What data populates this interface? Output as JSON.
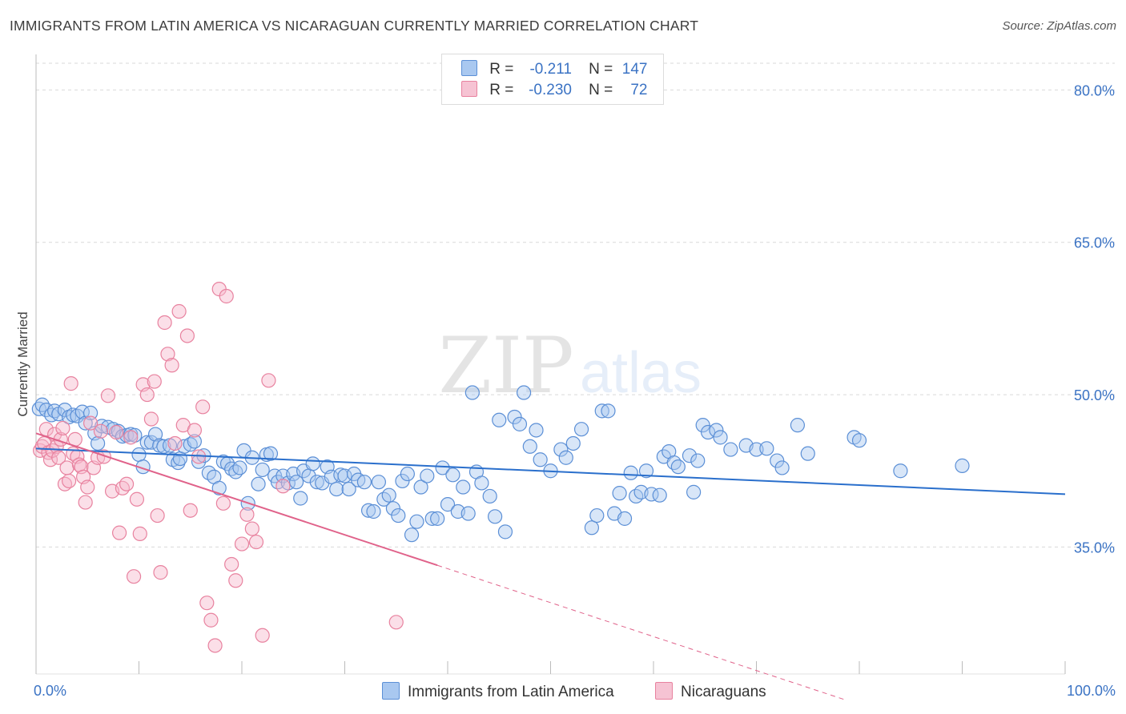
{
  "header": {
    "title": "IMMIGRANTS FROM LATIN AMERICA VS NICARAGUAN CURRENTLY MARRIED CORRELATION CHART",
    "source": "Source: ZipAtlas.com"
  },
  "watermark": {
    "zip": "ZIP",
    "atlas": "atlas"
  },
  "legend": {
    "rows": [
      {
        "r_label": "R =",
        "r_value": "-0.211",
        "n_label": "N =",
        "n_value": "147"
      },
      {
        "r_label": "R =",
        "r_value": "-0.230",
        "n_label": "N =",
        "n_value": "72"
      }
    ]
  },
  "colors": {
    "blue_fill": "#a9c8f0",
    "blue_stroke": "#5b8fd6",
    "blue_line": "#2a6fcc",
    "pink_fill": "#f6b9cc",
    "pink_stroke": "#e8829f",
    "pink_line": "#e0628a",
    "tick_text": "#3b73c4",
    "grid": "#d9d9d9"
  },
  "chart_data": {
    "type": "scatter",
    "title": "IMMIGRANTS FROM LATIN AMERICA VS NICARAGUAN CURRENTLY MARRIED CORRELATION CHART",
    "xlabel": "",
    "ylabel": "Currently Married",
    "xlim": [
      0,
      100
    ],
    "ylim": [
      22.5,
      83.5
    ],
    "x_tick_labels": [
      "0.0%",
      "100.0%"
    ],
    "y_ticks": [
      35,
      50,
      65,
      80
    ],
    "y_tick_labels": [
      "35.0%",
      "50.0%",
      "65.0%",
      "80.0%"
    ],
    "grid": "horizontal dashed",
    "legend_position": "top-center",
    "series": [
      {
        "name": "Immigrants from Latin America",
        "color": "#5b8fd6",
        "trend": {
          "x": [
            0,
            100
          ],
          "y": [
            44.7,
            40.2
          ]
        },
        "points": [
          [
            0.3,
            48.6
          ],
          [
            0.6,
            49.0
          ],
          [
            1.0,
            48.5
          ],
          [
            1.5,
            48.0
          ],
          [
            1.8,
            48.4
          ],
          [
            2.2,
            48.1
          ],
          [
            2.8,
            48.5
          ],
          [
            3.2,
            47.8
          ],
          [
            3.6,
            48.0
          ],
          [
            4.0,
            47.9
          ],
          [
            4.5,
            48.3
          ],
          [
            4.8,
            47.2
          ],
          [
            5.3,
            48.2
          ],
          [
            5.7,
            46.2
          ],
          [
            6.0,
            45.2
          ],
          [
            6.4,
            46.9
          ],
          [
            7.0,
            46.8
          ],
          [
            7.5,
            46.6
          ],
          [
            8.0,
            46.4
          ],
          [
            8.4,
            45.9
          ],
          [
            8.8,
            46.0
          ],
          [
            9.2,
            46.1
          ],
          [
            9.6,
            46.0
          ],
          [
            10.0,
            44.1
          ],
          [
            10.4,
            42.9
          ],
          [
            10.8,
            45.3
          ],
          [
            11.2,
            45.3
          ],
          [
            11.6,
            46.1
          ],
          [
            12.0,
            45.0
          ],
          [
            12.4,
            44.9
          ],
          [
            13.0,
            45.0
          ],
          [
            13.3,
            43.6
          ],
          [
            13.8,
            43.3
          ],
          [
            14.0,
            43.7
          ],
          [
            14.4,
            44.9
          ],
          [
            15.0,
            45.1
          ],
          [
            15.4,
            45.4
          ],
          [
            15.8,
            43.4
          ],
          [
            16.3,
            44.0
          ],
          [
            16.8,
            42.3
          ],
          [
            17.3,
            41.9
          ],
          [
            17.8,
            40.8
          ],
          [
            18.2,
            43.4
          ],
          [
            18.6,
            43.2
          ],
          [
            19.0,
            42.7
          ],
          [
            19.4,
            42.4
          ],
          [
            19.8,
            42.8
          ],
          [
            20.2,
            44.5
          ],
          [
            20.6,
            39.3
          ],
          [
            21.0,
            43.8
          ],
          [
            21.6,
            41.2
          ],
          [
            22.0,
            42.6
          ],
          [
            22.4,
            44.1
          ],
          [
            22.8,
            44.2
          ],
          [
            23.2,
            42.0
          ],
          [
            23.5,
            41.4
          ],
          [
            24.0,
            42.0
          ],
          [
            24.5,
            41.3
          ],
          [
            25.0,
            42.2
          ],
          [
            25.3,
            41.4
          ],
          [
            25.7,
            39.8
          ],
          [
            26.0,
            42.5
          ],
          [
            26.5,
            42.0
          ],
          [
            26.9,
            43.2
          ],
          [
            27.3,
            41.4
          ],
          [
            27.8,
            41.3
          ],
          [
            28.3,
            42.9
          ],
          [
            28.7,
            41.9
          ],
          [
            29.2,
            40.7
          ],
          [
            29.6,
            42.1
          ],
          [
            30.0,
            42.0
          ],
          [
            30.4,
            40.7
          ],
          [
            30.9,
            42.2
          ],
          [
            31.3,
            41.6
          ],
          [
            31.9,
            41.4
          ],
          [
            32.3,
            38.6
          ],
          [
            32.8,
            38.5
          ],
          [
            33.3,
            41.4
          ],
          [
            33.8,
            39.7
          ],
          [
            34.3,
            40.1
          ],
          [
            34.7,
            38.8
          ],
          [
            35.2,
            38.1
          ],
          [
            35.6,
            41.5
          ],
          [
            36.1,
            42.2
          ],
          [
            36.5,
            36.2
          ],
          [
            37.0,
            37.5
          ],
          [
            37.4,
            40.9
          ],
          [
            38.0,
            42.0
          ],
          [
            38.5,
            37.8
          ],
          [
            39.0,
            37.8
          ],
          [
            39.5,
            42.8
          ],
          [
            40.0,
            39.2
          ],
          [
            40.5,
            42.1
          ],
          [
            41.0,
            38.5
          ],
          [
            41.5,
            40.9
          ],
          [
            42.0,
            38.3
          ],
          [
            42.4,
            50.2
          ],
          [
            42.8,
            42.4
          ],
          [
            43.3,
            41.3
          ],
          [
            44.1,
            40.0
          ],
          [
            44.6,
            38.0
          ],
          [
            45.0,
            47.5
          ],
          [
            45.6,
            36.5
          ],
          [
            46.5,
            47.8
          ],
          [
            47.0,
            47.1
          ],
          [
            47.4,
            50.2
          ],
          [
            48.0,
            44.9
          ],
          [
            48.6,
            46.5
          ],
          [
            49.0,
            43.6
          ],
          [
            50.0,
            42.5
          ],
          [
            51.0,
            44.6
          ],
          [
            51.5,
            43.8
          ],
          [
            52.2,
            45.2
          ],
          [
            53.0,
            46.6
          ],
          [
            54.0,
            36.9
          ],
          [
            54.5,
            38.1
          ],
          [
            55.0,
            48.4
          ],
          [
            55.6,
            48.4
          ],
          [
            56.2,
            38.3
          ],
          [
            56.7,
            40.3
          ],
          [
            57.2,
            37.8
          ],
          [
            57.8,
            42.3
          ],
          [
            58.3,
            40.0
          ],
          [
            58.8,
            40.4
          ],
          [
            59.3,
            42.5
          ],
          [
            59.8,
            40.2
          ],
          [
            60.6,
            40.1
          ],
          [
            61.0,
            43.9
          ],
          [
            61.5,
            44.4
          ],
          [
            62.0,
            43.3
          ],
          [
            62.4,
            42.9
          ],
          [
            63.5,
            44.0
          ],
          [
            63.9,
            40.4
          ],
          [
            64.3,
            43.5
          ],
          [
            64.8,
            47.0
          ],
          [
            65.3,
            46.3
          ],
          [
            66.1,
            46.5
          ],
          [
            66.5,
            45.8
          ],
          [
            67.5,
            44.6
          ],
          [
            69.0,
            45.0
          ],
          [
            70.0,
            44.6
          ],
          [
            71.0,
            44.7
          ],
          [
            72.0,
            43.5
          ],
          [
            72.5,
            42.8
          ],
          [
            74.0,
            47.0
          ],
          [
            75.0,
            44.2
          ],
          [
            79.5,
            45.8
          ],
          [
            80.0,
            45.5
          ],
          [
            84.0,
            42.5
          ],
          [
            90.0,
            43.0
          ]
        ]
      },
      {
        "name": "Nicaraguans",
        "color": "#e8829f",
        "trend": {
          "x": [
            0,
            39
          ],
          "y": [
            46.2,
            33.2
          ]
        },
        "trend_dashed": {
          "x": [
            39,
            78.5
          ],
          "y": [
            33.2,
            20.0
          ]
        },
        "points": [
          [
            0.4,
            44.5
          ],
          [
            0.6,
            44.9
          ],
          [
            0.8,
            45.2
          ],
          [
            1.0,
            46.6
          ],
          [
            1.2,
            44.3
          ],
          [
            1.4,
            43.6
          ],
          [
            1.6,
            44.5
          ],
          [
            1.8,
            46.1
          ],
          [
            2.0,
            44.9
          ],
          [
            2.2,
            43.8
          ],
          [
            2.4,
            45.6
          ],
          [
            2.6,
            46.7
          ],
          [
            2.8,
            41.2
          ],
          [
            3.0,
            42.8
          ],
          [
            3.2,
            41.5
          ],
          [
            3.4,
            51.1
          ],
          [
            3.6,
            44.2
          ],
          [
            3.8,
            45.6
          ],
          [
            4.0,
            43.9
          ],
          [
            4.2,
            43.1
          ],
          [
            4.4,
            42.9
          ],
          [
            4.6,
            41.9
          ],
          [
            4.8,
            39.4
          ],
          [
            5.0,
            40.9
          ],
          [
            5.3,
            47.2
          ],
          [
            5.6,
            42.8
          ],
          [
            6.0,
            43.8
          ],
          [
            6.3,
            46.4
          ],
          [
            6.6,
            43.9
          ],
          [
            7.0,
            49.9
          ],
          [
            7.4,
            40.5
          ],
          [
            7.8,
            46.3
          ],
          [
            8.1,
            36.4
          ],
          [
            8.4,
            40.8
          ],
          [
            8.8,
            41.2
          ],
          [
            9.2,
            45.8
          ],
          [
            9.5,
            32.1
          ],
          [
            9.8,
            39.7
          ],
          [
            10.1,
            36.3
          ],
          [
            10.4,
            51.0
          ],
          [
            10.8,
            50.0
          ],
          [
            11.2,
            47.6
          ],
          [
            11.5,
            51.3
          ],
          [
            11.8,
            38.1
          ],
          [
            12.1,
            32.5
          ],
          [
            12.5,
            57.1
          ],
          [
            12.8,
            54.0
          ],
          [
            13.2,
            52.9
          ],
          [
            13.5,
            45.2
          ],
          [
            13.9,
            58.2
          ],
          [
            14.3,
            47.0
          ],
          [
            14.7,
            55.8
          ],
          [
            15.0,
            38.6
          ],
          [
            15.4,
            46.5
          ],
          [
            15.8,
            43.9
          ],
          [
            16.2,
            48.8
          ],
          [
            16.6,
            29.5
          ],
          [
            17.0,
            27.8
          ],
          [
            17.4,
            25.3
          ],
          [
            17.8,
            60.4
          ],
          [
            18.2,
            39.3
          ],
          [
            18.5,
            59.7
          ],
          [
            19.0,
            33.3
          ],
          [
            19.4,
            31.7
          ],
          [
            20.0,
            35.3
          ],
          [
            20.5,
            38.2
          ],
          [
            21.0,
            36.8
          ],
          [
            21.4,
            35.5
          ],
          [
            22.0,
            26.3
          ],
          [
            22.6,
            51.4
          ],
          [
            24.0,
            41.0
          ],
          [
            35.0,
            27.6
          ]
        ]
      }
    ]
  }
}
